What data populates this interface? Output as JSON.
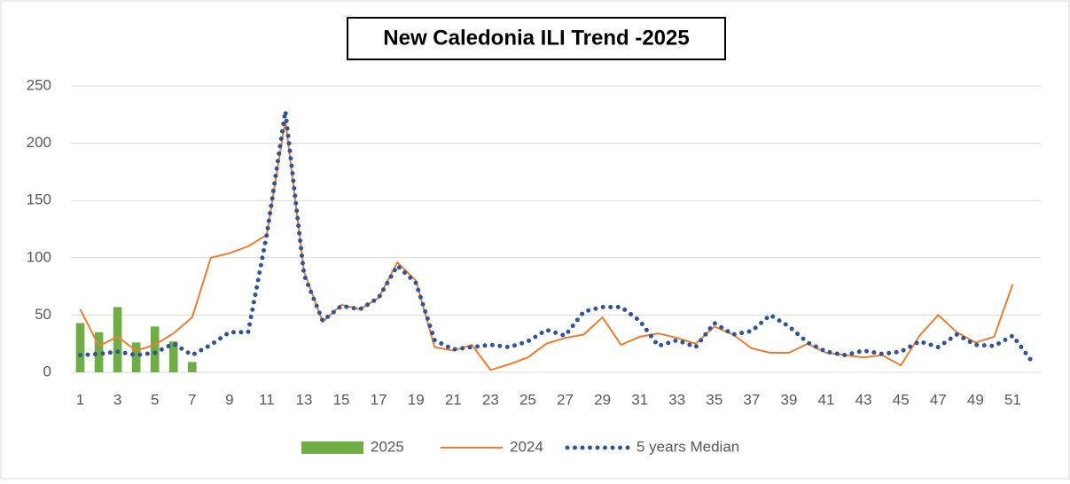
{
  "chart_data": {
    "type": "line",
    "title": "New Caledonia ILI Trend  -2025",
    "categories": [
      1,
      null,
      3,
      null,
      5,
      null,
      7,
      null,
      9,
      null,
      11,
      null,
      13,
      null,
      15,
      null,
      17,
      null,
      19,
      null,
      21,
      null,
      23,
      null,
      25,
      null,
      27,
      null,
      29,
      null,
      31,
      null,
      33,
      null,
      35,
      null,
      37,
      null,
      39,
      null,
      41,
      null,
      43,
      null,
      45,
      null,
      47,
      null,
      49,
      null,
      51,
      null
    ],
    "series": [
      {
        "name": "2025",
        "type": "bar",
        "color": "#70ad47",
        "values": [
          43,
          35,
          57,
          26,
          40,
          27,
          9,
          null,
          null,
          null,
          null,
          null,
          null,
          null,
          null,
          null,
          null,
          null,
          null,
          null,
          null,
          null,
          null,
          null,
          null,
          null,
          null,
          null,
          null,
          null,
          null,
          null,
          null,
          null,
          null,
          null,
          null,
          null,
          null,
          null,
          null,
          null,
          null,
          null,
          null,
          null,
          null,
          null,
          null,
          null,
          null,
          null
        ]
      },
      {
        "name": "2024",
        "type": "line",
        "color": "#ed7d31",
        "values": [
          55,
          23,
          31,
          19,
          24,
          34,
          48,
          100,
          104,
          110,
          120,
          220,
          88,
          44,
          59,
          55,
          65,
          96,
          80,
          22,
          19,
          24,
          2,
          7,
          13,
          25,
          30,
          33,
          48,
          24,
          31,
          34,
          30,
          25,
          40,
          33,
          21,
          17,
          17,
          25,
          17,
          15,
          13,
          15,
          6,
          32,
          50,
          35,
          26,
          31,
          77,
          null
        ]
      },
      {
        "name": "5 years Median",
        "type": "dotted",
        "color": "#2f5597",
        "values": [
          15,
          16,
          18,
          15,
          17,
          25,
          15,
          24,
          35,
          35,
          120,
          228,
          85,
          45,
          58,
          55,
          65,
          93,
          78,
          28,
          20,
          22,
          24,
          22,
          27,
          37,
          32,
          53,
          57,
          57,
          45,
          23,
          28,
          22,
          43,
          33,
          36,
          50,
          40,
          26,
          18,
          15,
          19,
          16,
          18,
          27,
          22,
          33,
          24,
          23,
          32,
          10
        ]
      }
    ],
    "ylim": [
      0,
      250
    ],
    "yticks": [
      0,
      50,
      100,
      150,
      200,
      250
    ],
    "grid": true
  }
}
